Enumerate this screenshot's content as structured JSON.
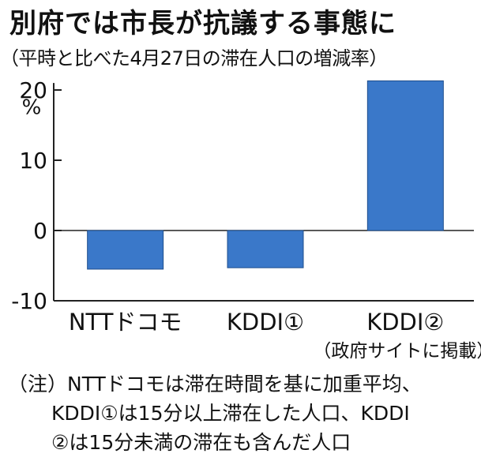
{
  "chart_data": {
    "type": "bar",
    "title": "別府では市長が抗議する事態に",
    "subtitle": "（平時と比べた4月27日の滞在人口の増減率）",
    "ylabel": "%",
    "ylim": [
      -10,
      21
    ],
    "yticks": [
      20,
      10,
      0,
      -10
    ],
    "categories": [
      "NTTドコモ",
      "KDDI①",
      "KDDI②"
    ],
    "category_notes": [
      "",
      "",
      "（政府サイトに掲載）"
    ],
    "values": [
      -5.5,
      -5.3,
      21.3
    ],
    "bar_color": "#3a78c9"
  },
  "note": {
    "line1": "（注）NTTドコモは滞在時間を基に加重平均、",
    "line2": "KDDI①は15分以上滞在した人口、KDDI",
    "line3": "②は15分未満の滞在も含んだ人口"
  }
}
